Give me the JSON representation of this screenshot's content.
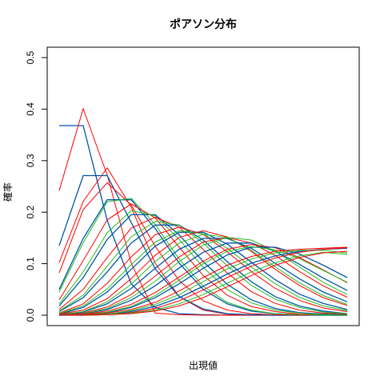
{
  "chart_data": {
    "type": "line",
    "title": "ポアソン分布",
    "xlabel": "出現値",
    "ylabel": "確率",
    "xlim": [
      0,
      12
    ],
    "ylim": [
      0,
      0.5
    ],
    "yticks": [
      "0.0",
      "0.1",
      "0.2",
      "0.3",
      "0.4",
      "0.5"
    ],
    "x": [
      0,
      1,
      2,
      3,
      4,
      5,
      6,
      7,
      8,
      9,
      10,
      11,
      12
    ],
    "grid": false,
    "legend": "none",
    "colors": {
      "red": "#ff0000",
      "blue": "#0055aa",
      "green": "#22bb22"
    },
    "series": [
      {
        "color": "blue",
        "values": [
          0.368,
          0.368,
          0.184,
          0.061,
          0.015,
          0.003,
          0.001,
          0.0,
          0.0,
          0.0,
          0.0,
          0.0,
          0.0
        ]
      },
      {
        "color": "red",
        "values": [
          0.242,
          0.401,
          0.272,
          0.101,
          0.004,
          0.001,
          0.0,
          0.0,
          0.0,
          0.0,
          0.0,
          0.0,
          0.0
        ]
      },
      {
        "color": "red",
        "values": [
          0.102,
          0.221,
          0.286,
          0.21,
          0.101,
          0.036,
          0.01,
          0.002,
          0.0,
          0.0,
          0.0,
          0.0,
          0.0
        ]
      },
      {
        "color": "blue",
        "values": [
          0.135,
          0.271,
          0.271,
          0.18,
          0.09,
          0.036,
          0.012,
          0.003,
          0.001,
          0.0,
          0.0,
          0.0,
          0.0
        ]
      },
      {
        "color": "red",
        "values": [
          0.082,
          0.205,
          0.257,
          0.214,
          0.134,
          0.067,
          0.028,
          0.01,
          0.003,
          0.001,
          0.0,
          0.0,
          0.0
        ]
      },
      {
        "color": "blue",
        "values": [
          0.05,
          0.149,
          0.224,
          0.224,
          0.168,
          0.101,
          0.05,
          0.022,
          0.008,
          0.003,
          0.001,
          0.0,
          0.0
        ]
      },
      {
        "color": "green",
        "values": [
          0.045,
          0.141,
          0.22,
          0.227,
          0.176,
          0.109,
          0.056,
          0.025,
          0.01,
          0.003,
          0.001,
          0.0,
          0.0
        ]
      },
      {
        "color": "red",
        "values": [
          0.03,
          0.106,
          0.185,
          0.216,
          0.189,
          0.132,
          0.077,
          0.039,
          0.017,
          0.007,
          0.002,
          0.001,
          0.0
        ]
      },
      {
        "color": "blue",
        "values": [
          0.018,
          0.073,
          0.147,
          0.195,
          0.195,
          0.156,
          0.104,
          0.06,
          0.03,
          0.013,
          0.005,
          0.002,
          0.001
        ]
      },
      {
        "color": "green",
        "values": [
          0.022,
          0.084,
          0.16,
          0.203,
          0.193,
          0.147,
          0.093,
          0.05,
          0.024,
          0.01,
          0.004,
          0.001,
          0.0
        ]
      },
      {
        "color": "red",
        "values": [
          0.011,
          0.05,
          0.112,
          0.169,
          0.19,
          0.171,
          0.128,
          0.082,
          0.046,
          0.023,
          0.01,
          0.004,
          0.002
        ]
      },
      {
        "color": "blue",
        "values": [
          0.007,
          0.034,
          0.084,
          0.14,
          0.175,
          0.175,
          0.146,
          0.104,
          0.065,
          0.036,
          0.018,
          0.008,
          0.003
        ]
      },
      {
        "color": "green",
        "values": [
          0.008,
          0.039,
          0.095,
          0.152,
          0.182,
          0.175,
          0.14,
          0.096,
          0.058,
          0.031,
          0.015,
          0.006,
          0.003
        ]
      },
      {
        "color": "red",
        "values": [
          0.004,
          0.022,
          0.062,
          0.113,
          0.156,
          0.171,
          0.157,
          0.123,
          0.085,
          0.052,
          0.029,
          0.014,
          0.007
        ]
      },
      {
        "color": "blue",
        "values": [
          0.002,
          0.015,
          0.045,
          0.089,
          0.134,
          0.161,
          0.161,
          0.138,
          0.103,
          0.069,
          0.041,
          0.023,
          0.011
        ]
      },
      {
        "color": "green",
        "values": [
          0.003,
          0.018,
          0.051,
          0.098,
          0.142,
          0.164,
          0.158,
          0.13,
          0.094,
          0.061,
          0.035,
          0.018,
          0.009
        ]
      },
      {
        "color": "red",
        "values": [
          0.002,
          0.01,
          0.032,
          0.071,
          0.116,
          0.151,
          0.164,
          0.152,
          0.124,
          0.089,
          0.058,
          0.034,
          0.019
        ]
      },
      {
        "color": "blue",
        "values": [
          0.001,
          0.006,
          0.022,
          0.052,
          0.091,
          0.128,
          0.149,
          0.149,
          0.13,
          0.101,
          0.071,
          0.045,
          0.026
        ]
      },
      {
        "color": "green",
        "values": [
          0.001,
          0.007,
          0.026,
          0.06,
          0.104,
          0.14,
          0.157,
          0.151,
          0.126,
          0.094,
          0.063,
          0.038,
          0.021
        ]
      },
      {
        "color": "red",
        "values": [
          0.001,
          0.004,
          0.016,
          0.04,
          0.076,
          0.113,
          0.142,
          0.151,
          0.14,
          0.116,
          0.085,
          0.057,
          0.035
        ]
      },
      {
        "color": "blue",
        "values": [
          0.0,
          0.003,
          0.011,
          0.029,
          0.057,
          0.092,
          0.122,
          0.14,
          0.14,
          0.124,
          0.099,
          0.072,
          0.048
        ]
      },
      {
        "color": "green",
        "values": [
          0.0,
          0.003,
          0.013,
          0.034,
          0.066,
          0.104,
          0.136,
          0.151,
          0.146,
          0.124,
          0.094,
          0.064,
          0.04
        ]
      },
      {
        "color": "red",
        "values": [
          0.0,
          0.002,
          0.008,
          0.021,
          0.044,
          0.074,
          0.105,
          0.128,
          0.137,
          0.131,
          0.112,
          0.088,
          0.063
        ]
      },
      {
        "color": "blue",
        "values": [
          0.0,
          0.001,
          0.005,
          0.015,
          0.034,
          0.061,
          0.091,
          0.117,
          0.132,
          0.132,
          0.119,
          0.097,
          0.073
        ]
      },
      {
        "color": "green",
        "values": [
          0.0,
          0.001,
          0.006,
          0.017,
          0.038,
          0.068,
          0.1,
          0.124,
          0.133,
          0.127,
          0.11,
          0.087,
          0.064
        ]
      },
      {
        "color": "red",
        "values": [
          0.0,
          0.001,
          0.004,
          0.011,
          0.025,
          0.047,
          0.073,
          0.097,
          0.114,
          0.124,
          0.128,
          0.13,
          0.132
        ]
      },
      {
        "color": "blue",
        "values": [
          0.0,
          0.0,
          0.002,
          0.007,
          0.017,
          0.034,
          0.056,
          0.08,
          0.101,
          0.115,
          0.124,
          0.128,
          0.13
        ]
      },
      {
        "color": "green",
        "values": [
          0.0,
          0.0,
          0.002,
          0.009,
          0.021,
          0.04,
          0.065,
          0.09,
          0.109,
          0.121,
          0.126,
          0.126,
          0.121
        ]
      },
      {
        "color": "red",
        "values": [
          0.0,
          0.0,
          0.001,
          0.005,
          0.013,
          0.028,
          0.049,
          0.073,
          0.095,
          0.111,
          0.122,
          0.128,
          0.131
        ]
      },
      {
        "color": "green",
        "values": [
          0.0,
          0.0,
          0.001,
          0.004,
          0.01,
          0.022,
          0.04,
          0.062,
          0.084,
          0.102,
          0.115,
          0.122,
          0.118
        ]
      },
      {
        "color": "red",
        "values": [
          0.0,
          0.0,
          0.001,
          0.003,
          0.008,
          0.018,
          0.034,
          0.055,
          0.077,
          0.097,
          0.112,
          0.121,
          0.124
        ]
      }
    ]
  }
}
